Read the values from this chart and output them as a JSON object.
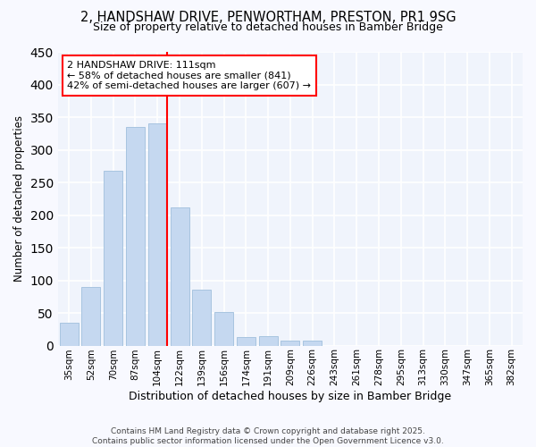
{
  "title_line1": "2, HANDSHAW DRIVE, PENWORTHAM, PRESTON, PR1 9SG",
  "title_line2": "Size of property relative to detached houses in Bamber Bridge",
  "xlabel": "Distribution of detached houses by size in Bamber Bridge",
  "ylabel": "Number of detached properties",
  "categories": [
    "35sqm",
    "52sqm",
    "70sqm",
    "87sqm",
    "104sqm",
    "122sqm",
    "139sqm",
    "156sqm",
    "174sqm",
    "191sqm",
    "209sqm",
    "226sqm",
    "243sqm",
    "261sqm",
    "278sqm",
    "295sqm",
    "313sqm",
    "330sqm",
    "347sqm",
    "365sqm",
    "382sqm"
  ],
  "values": [
    35,
    90,
    268,
    335,
    340,
    212,
    85,
    51,
    13,
    15,
    7,
    7,
    0,
    0,
    0,
    0,
    0,
    0,
    0,
    0,
    0
  ],
  "bar_color": "#c5d8f0",
  "bar_edge_color": "#a8c4e0",
  "red_line_index": 4,
  "annotation_text": "2 HANDSHAW DRIVE: 111sqm\n← 58% of detached houses are smaller (841)\n42% of semi-detached houses are larger (607) →",
  "ylim": [
    0,
    450
  ],
  "yticks": [
    0,
    50,
    100,
    150,
    200,
    250,
    300,
    350,
    400,
    450
  ],
  "background_color": "#f8f9ff",
  "plot_bg_color": "#f0f4fc",
  "grid_color": "#ffffff",
  "footer_line1": "Contains HM Land Registry data © Crown copyright and database right 2025.",
  "footer_line2": "Contains public sector information licensed under the Open Government Licence v3.0."
}
